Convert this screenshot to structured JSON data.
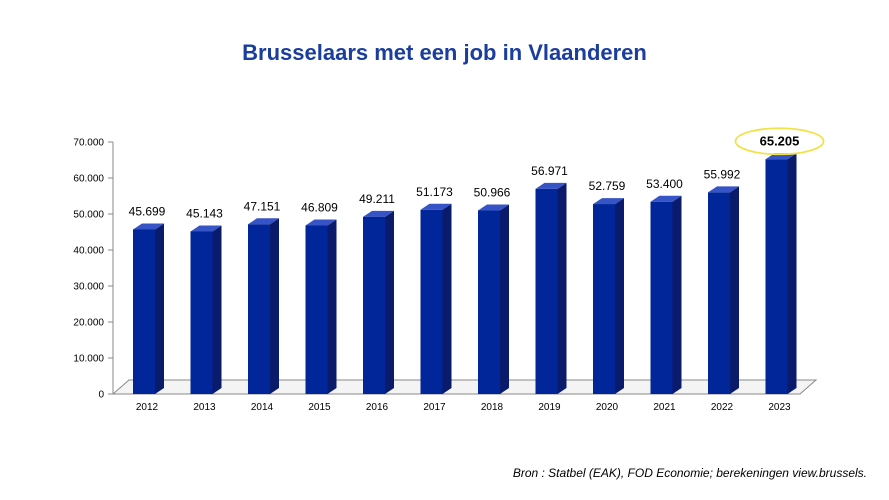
{
  "title": "Brusselaars met een job in Vlaanderen",
  "source": "Bron : Statbel (EAK), FOD Economie; berekeningen view.brussels.",
  "colors": {
    "bar_front": "#00269a",
    "bar_side": "#0a1b6b",
    "bar_top": "#3654c6",
    "highlight": "#f2e24a",
    "axis": "#888888"
  },
  "chart_data": {
    "type": "bar",
    "categories": [
      "2012",
      "2013",
      "2014",
      "2015",
      "2016",
      "2017",
      "2018",
      "2019",
      "2020",
      "2021",
      "2022",
      "2023"
    ],
    "values": [
      45699,
      45143,
      47151,
      46809,
      49211,
      51173,
      50966,
      56971,
      52759,
      53400,
      55992,
      65205
    ],
    "value_labels": [
      "45.699",
      "45.143",
      "47.151",
      "46.809",
      "49.211",
      "51.173",
      "50.966",
      "56.971",
      "52.759",
      "53.400",
      "55.992",
      "65.205"
    ],
    "highlighted_category": "2023",
    "ylim": [
      0,
      70000
    ],
    "yticks": [
      0,
      10000,
      20000,
      30000,
      40000,
      50000,
      60000,
      70000
    ],
    "ytick_labels": [
      "0",
      "10.000",
      "20.000",
      "30.000",
      "40.000",
      "50.000",
      "60.000",
      "70.000"
    ],
    "grid": false,
    "legend": "none"
  }
}
